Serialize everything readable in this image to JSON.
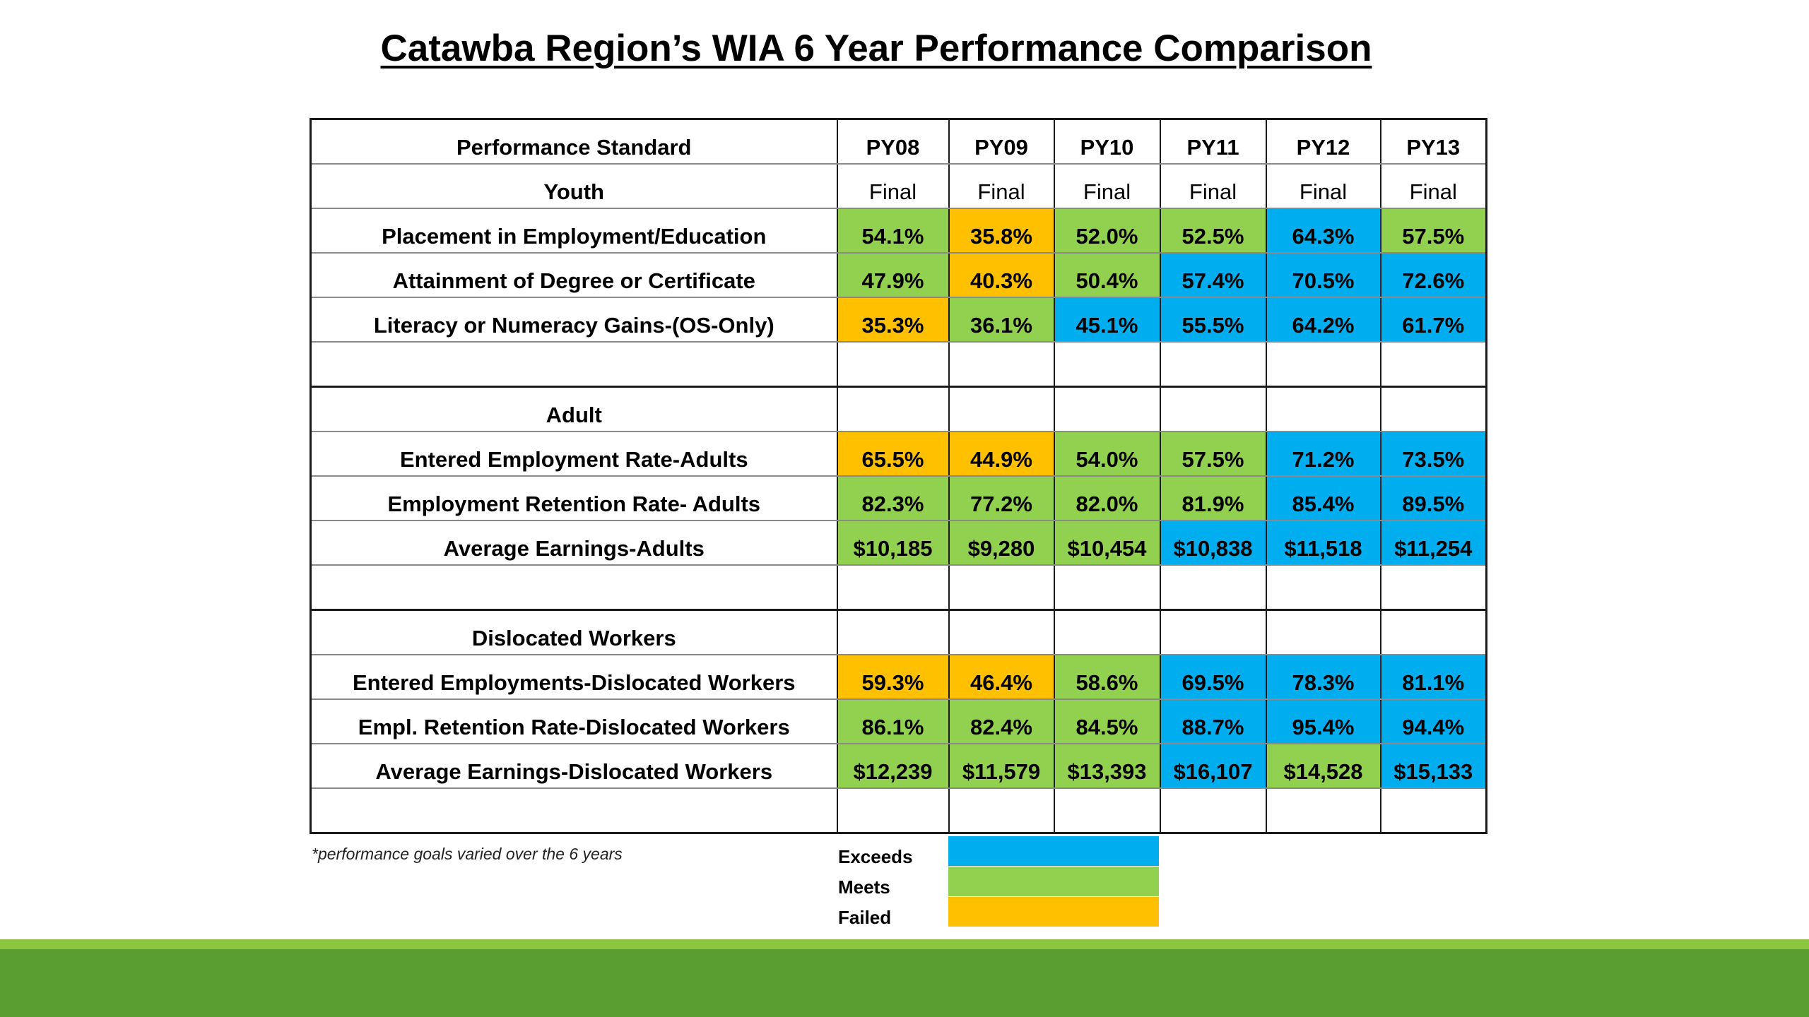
{
  "title": "Catawba Region’s WIA 6 Year Performance Comparison",
  "table": {
    "header": {
      "label": "Performance Standard",
      "years": [
        "PY08",
        "PY09",
        "PY10",
        "PY11",
        "PY12",
        "PY13"
      ]
    },
    "youth_header": {
      "label": "Youth",
      "status": [
        "Final",
        "Final",
        "Final",
        "Final",
        "Final",
        "Final"
      ]
    },
    "youth_rows": [
      {
        "label": "Placement in Employment/Education",
        "values": [
          "54.1%",
          "35.8%",
          "52.0%",
          "52.5%",
          "64.3%",
          "57.5%"
        ],
        "ratings": [
          "meets",
          "failed",
          "meets",
          "meets",
          "exceeds",
          "meets"
        ]
      },
      {
        "label": "Attainment of Degree or Certificate",
        "values": [
          "47.9%",
          "40.3%",
          "50.4%",
          "57.4%",
          "70.5%",
          "72.6%"
        ],
        "ratings": [
          "meets",
          "failed",
          "meets",
          "exceeds",
          "exceeds",
          "exceeds"
        ]
      },
      {
        "label": "Literacy or Numeracy Gains-(OS-Only)",
        "values": [
          "35.3%",
          "36.1%",
          "45.1%",
          "55.5%",
          "64.2%",
          "61.7%"
        ],
        "ratings": [
          "failed",
          "meets",
          "exceeds",
          "exceeds",
          "exceeds",
          "exceeds"
        ]
      }
    ],
    "adult_header": {
      "label": "Adult"
    },
    "adult_rows": [
      {
        "label": "Entered Employment Rate-Adults",
        "values": [
          "65.5%",
          "44.9%",
          "54.0%",
          "57.5%",
          "71.2%",
          "73.5%"
        ],
        "ratings": [
          "failed",
          "failed",
          "meets",
          "meets",
          "exceeds",
          "exceeds"
        ]
      },
      {
        "label": "Employment Retention Rate- Adults",
        "values": [
          "82.3%",
          "77.2%",
          "82.0%",
          "81.9%",
          "85.4%",
          "89.5%"
        ],
        "ratings": [
          "meets",
          "meets",
          "meets",
          "meets",
          "exceeds",
          "exceeds"
        ]
      },
      {
        "label": "Average Earnings-Adults",
        "values": [
          "$10,185",
          "$9,280",
          "$10,454",
          "$10,838",
          "$11,518",
          "$11,254"
        ],
        "ratings": [
          "meets",
          "meets",
          "meets",
          "exceeds",
          "exceeds",
          "exceeds"
        ]
      }
    ],
    "dw_header": {
      "label": "Dislocated Workers"
    },
    "dw_rows": [
      {
        "label": "Entered Employments-Dislocated Workers",
        "values": [
          "59.3%",
          "46.4%",
          "58.6%",
          "69.5%",
          "78.3%",
          "81.1%"
        ],
        "ratings": [
          "failed",
          "failed",
          "meets",
          "exceeds",
          "exceeds",
          "exceeds"
        ]
      },
      {
        "label": "Empl. Retention Rate-Dislocated Workers",
        "values": [
          "86.1%",
          "82.4%",
          "84.5%",
          "88.7%",
          "95.4%",
          "94.4%"
        ],
        "ratings": [
          "meets",
          "meets",
          "meets",
          "exceeds",
          "exceeds",
          "exceeds"
        ]
      },
      {
        "label": "Average Earnings-Dislocated Workers",
        "values": [
          "$12,239",
          "$11,579",
          "$13,393",
          "$16,107",
          "$14,528",
          "$15,133"
        ],
        "ratings": [
          "meets",
          "meets",
          "meets",
          "exceeds",
          "meets",
          "exceeds"
        ]
      }
    ]
  },
  "footnote": "*performance goals varied over the 6 years",
  "legend": [
    {
      "label": "Exceeds",
      "color": "#00aeef"
    },
    {
      "label": "Meets",
      "color": "#92d050"
    },
    {
      "label": "Failed",
      "color": "#ffc000"
    }
  ],
  "colors": {
    "exceeds": "#00aeef",
    "meets": "#92d050",
    "failed": "#ffc000",
    "footer_band": "#5a9e32"
  }
}
